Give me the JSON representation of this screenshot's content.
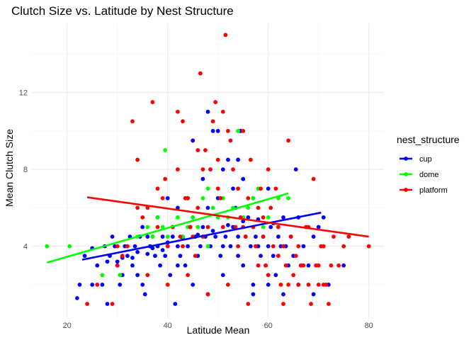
{
  "chart_data": {
    "type": "scatter",
    "title": "Clutch Size vs. Latitude by Nest Structure",
    "xlabel": "Latitude Mean",
    "ylabel": "Mean Clutch Size",
    "xlim": [
      13,
      83
    ],
    "ylim": [
      0.3,
      15.6
    ],
    "x_ticks": [
      20,
      40,
      60,
      80
    ],
    "y_ticks": [
      4,
      8,
      12
    ],
    "grid": true,
    "legend_title": "nest_structure",
    "legend_position": "right",
    "series": [
      {
        "name": "cup",
        "color": "#0000FF",
        "trend": {
          "x": [
            23,
            70.5
          ],
          "y": [
            3.3,
            5.75
          ]
        },
        "points": [
          [
            22.5,
            2
          ],
          [
            23.5,
            3.5
          ],
          [
            25,
            2
          ],
          [
            26,
            3
          ],
          [
            27,
            2
          ],
          [
            27.5,
            4
          ],
          [
            28,
            1
          ],
          [
            28.5,
            3.5
          ],
          [
            29,
            4.5
          ],
          [
            29.5,
            4
          ],
          [
            30,
            3
          ],
          [
            30.5,
            2
          ],
          [
            31,
            2.5
          ],
          [
            31.5,
            4
          ],
          [
            32,
            3.5
          ],
          [
            32.5,
            4.5
          ],
          [
            33,
            3
          ],
          [
            33.5,
            4
          ],
          [
            34,
            2.5
          ],
          [
            34.5,
            4.5
          ],
          [
            35,
            2
          ],
          [
            35.5,
            1.5
          ],
          [
            36,
            4.5
          ],
          [
            36.5,
            4
          ],
          [
            37,
            4.5
          ],
          [
            37.5,
            3.5
          ],
          [
            38,
            4
          ],
          [
            38.5,
            3
          ],
          [
            39,
            4.5
          ],
          [
            39.5,
            3.5
          ],
          [
            40,
            4
          ],
          [
            40.5,
            2.5
          ],
          [
            41,
            4.5
          ],
          [
            41.5,
            1
          ],
          [
            42,
            4
          ],
          [
            42.5,
            3.5
          ],
          [
            43,
            4.5
          ],
          [
            43.5,
            3
          ],
          [
            44,
            4
          ],
          [
            44.5,
            5
          ],
          [
            45,
            9.5
          ],
          [
            45.5,
            4.5
          ],
          [
            46,
            3.5
          ],
          [
            46.5,
            4
          ],
          [
            47,
            5
          ],
          [
            47.5,
            4.5
          ],
          [
            48,
            11
          ],
          [
            48.5,
            4
          ],
          [
            49,
            10
          ],
          [
            49.5,
            4.5
          ],
          [
            50,
            10
          ],
          [
            50.5,
            3.5
          ],
          [
            51,
            4
          ],
          [
            51.5,
            4.5
          ],
          [
            52,
            8.5
          ],
          [
            52.5,
            4
          ],
          [
            53,
            5
          ],
          [
            53.5,
            6
          ],
          [
            54,
            4.5
          ],
          [
            54.5,
            10
          ],
          [
            55,
            3
          ],
          [
            55.5,
            4.5
          ],
          [
            56,
            5.5
          ],
          [
            56.5,
            4
          ],
          [
            57,
            2
          ],
          [
            57.5,
            4.5
          ],
          [
            58,
            4
          ],
          [
            58.5,
            3.5
          ],
          [
            59,
            4.5
          ],
          [
            59.5,
            3
          ],
          [
            60,
            4
          ],
          [
            60.5,
            5
          ],
          [
            61,
            3.5
          ],
          [
            61.5,
            2.5
          ],
          [
            62,
            4.5
          ],
          [
            62.5,
            4
          ],
          [
            63,
            5.5
          ],
          [
            63.5,
            4
          ],
          [
            64,
            3
          ],
          [
            64.5,
            4.5
          ],
          [
            65,
            3.5
          ],
          [
            65.5,
            8
          ],
          [
            66,
            5.5
          ],
          [
            66.5,
            3
          ],
          [
            67,
            4
          ],
          [
            68,
            3
          ],
          [
            69,
            4.5
          ],
          [
            70,
            5
          ],
          [
            71,
            5.5
          ],
          [
            22,
            1.3
          ],
          [
            25,
            3.9
          ],
          [
            28,
            3.2
          ],
          [
            31,
            3.4
          ],
          [
            34,
            3.7
          ],
          [
            37,
            3.9
          ],
          [
            40,
            4.2
          ],
          [
            43,
            4.4
          ],
          [
            46,
            4.6
          ],
          [
            49,
            4.8
          ],
          [
            52,
            5.1
          ],
          [
            55,
            5.3
          ],
          [
            58,
            5.4
          ],
          [
            61,
            5.2
          ],
          [
            40,
            6.5
          ],
          [
            45,
            5.5
          ],
          [
            48,
            6
          ],
          [
            50,
            6.5
          ],
          [
            53,
            7
          ],
          [
            55,
            7.5
          ],
          [
            60,
            7
          ],
          [
            35,
            5
          ],
          [
            38,
            5.5
          ],
          [
            42,
            6
          ],
          [
            44,
            6.5
          ],
          [
            47,
            7.5
          ],
          [
            51,
            8
          ],
          [
            54,
            8.5
          ],
          [
            57,
            6.5
          ],
          [
            30,
            3.2
          ],
          [
            33,
            3.4
          ],
          [
            36,
            3.6
          ],
          [
            39,
            3.8
          ],
          [
            42,
            3
          ],
          [
            45,
            2
          ],
          [
            48,
            1.5
          ],
          [
            51,
            2.5
          ],
          [
            54,
            3.5
          ],
          [
            57,
            1.5
          ],
          [
            60,
            2
          ],
          [
            63,
            1.5
          ],
          [
            66,
            2
          ],
          [
            69,
            1.5
          ],
          [
            72,
            2
          ],
          [
            75,
            3
          ]
        ]
      },
      {
        "name": "dome",
        "color": "#00FF00",
        "trend": {
          "x": [
            16,
            64
          ],
          "y": [
            3.15,
            6.75
          ]
        },
        "points": [
          [
            16,
            4
          ],
          [
            20.5,
            4
          ],
          [
            27,
            2.5
          ],
          [
            30.5,
            2.5
          ],
          [
            32,
            4
          ],
          [
            34,
            4.5
          ],
          [
            36,
            5
          ],
          [
            37,
            4.5
          ],
          [
            38,
            5.5
          ],
          [
            39,
            5
          ],
          [
            39.5,
            9
          ],
          [
            40,
            4.5
          ],
          [
            41,
            5
          ],
          [
            42,
            5.5
          ],
          [
            43,
            4.5
          ],
          [
            44,
            5
          ],
          [
            45,
            5.5
          ],
          [
            46,
            5
          ],
          [
            47,
            6.5
          ],
          [
            48,
            7
          ],
          [
            49,
            6
          ],
          [
            50,
            5.5
          ],
          [
            51,
            6.5
          ],
          [
            52,
            5.5
          ],
          [
            53,
            6
          ],
          [
            54,
            10
          ],
          [
            55,
            5.5
          ],
          [
            56,
            6
          ],
          [
            57,
            6.5
          ],
          [
            58,
            7
          ],
          [
            59,
            5
          ],
          [
            60,
            5.5
          ],
          [
            62,
            6.5
          ],
          [
            64,
            6.5
          ],
          [
            48,
            4
          ]
        ]
      },
      {
        "name": "platform",
        "color": "#FF0000",
        "trend": {
          "x": [
            24,
            80
          ],
          "y": [
            6.55,
            4.5
          ]
        },
        "points": [
          [
            24,
            1
          ],
          [
            29,
            1
          ],
          [
            30,
            4
          ],
          [
            31,
            3.5
          ],
          [
            32,
            4
          ],
          [
            33,
            10.5
          ],
          [
            34,
            8.5
          ],
          [
            35,
            5.5
          ],
          [
            36,
            6
          ],
          [
            37,
            11.5
          ],
          [
            38,
            5
          ],
          [
            39,
            6.5
          ],
          [
            39.5,
            7.5
          ],
          [
            40,
            4
          ],
          [
            41,
            5
          ],
          [
            42,
            11
          ],
          [
            42.5,
            4.5
          ],
          [
            43,
            10.5
          ],
          [
            43.5,
            6.5
          ],
          [
            44,
            6.5
          ],
          [
            44.5,
            5
          ],
          [
            45,
            4.5
          ],
          [
            45.5,
            3.5
          ],
          [
            46,
            6
          ],
          [
            46.5,
            13
          ],
          [
            47,
            8
          ],
          [
            47.5,
            9
          ],
          [
            48,
            5
          ],
          [
            48.5,
            8
          ],
          [
            49,
            10.5
          ],
          [
            49.5,
            11.5
          ],
          [
            50,
            8.5
          ],
          [
            50.5,
            6.5
          ],
          [
            51,
            11
          ],
          [
            51.5,
            15
          ],
          [
            52,
            10
          ],
          [
            52.5,
            9.5
          ],
          [
            53,
            8
          ],
          [
            53.5,
            5
          ],
          [
            54,
            7
          ],
          [
            54.5,
            5.5
          ],
          [
            55,
            10
          ],
          [
            55.5,
            4.5
          ],
          [
            56,
            6.5
          ],
          [
            56.5,
            8.5
          ],
          [
            57,
            5
          ],
          [
            57.5,
            4
          ],
          [
            58,
            6
          ],
          [
            58.5,
            7
          ],
          [
            59,
            5.5
          ],
          [
            59.5,
            3
          ],
          [
            60,
            8
          ],
          [
            60.5,
            6
          ],
          [
            61,
            4
          ],
          [
            61.5,
            7
          ],
          [
            62,
            5
          ],
          [
            62.5,
            2
          ],
          [
            63,
            1
          ],
          [
            63.5,
            3
          ],
          [
            64,
            9.5
          ],
          [
            64.5,
            4.5
          ],
          [
            65,
            2.5
          ],
          [
            65.5,
            3.5
          ],
          [
            66,
            4
          ],
          [
            66.5,
            3
          ],
          [
            67,
            3
          ],
          [
            67.5,
            5
          ],
          [
            68,
            5
          ],
          [
            68.5,
            1
          ],
          [
            69,
            7.5
          ],
          [
            69.5,
            3
          ],
          [
            70,
            2
          ],
          [
            70.5,
            4
          ],
          [
            71,
            4
          ],
          [
            71.5,
            2
          ],
          [
            72,
            1
          ],
          [
            72.5,
            3
          ],
          [
            73,
            4.5
          ],
          [
            74,
            3
          ],
          [
            75,
            4
          ],
          [
            76,
            4.5
          ],
          [
            80,
            4
          ],
          [
            26,
            2
          ],
          [
            30,
            3
          ],
          [
            34,
            6
          ],
          [
            38,
            7
          ],
          [
            42,
            8
          ],
          [
            46,
            9
          ],
          [
            50,
            7
          ],
          [
            54,
            4
          ],
          [
            58,
            3
          ],
          [
            62,
            3.5
          ],
          [
            66,
            2
          ],
          [
            70,
            3
          ],
          [
            36,
            2.5
          ],
          [
            40,
            2
          ],
          [
            44,
            2.5
          ],
          [
            48,
            1.5
          ],
          [
            52,
            2
          ],
          [
            56,
            1
          ],
          [
            60,
            2.5
          ],
          [
            64,
            2
          ],
          [
            68,
            2
          ],
          [
            71,
            2
          ],
          [
            43,
            4
          ],
          [
            47,
            4.5
          ],
          [
            51,
            5
          ],
          [
            55,
            5
          ],
          [
            59,
            4.5
          ],
          [
            63,
            4
          ]
        ]
      }
    ]
  }
}
